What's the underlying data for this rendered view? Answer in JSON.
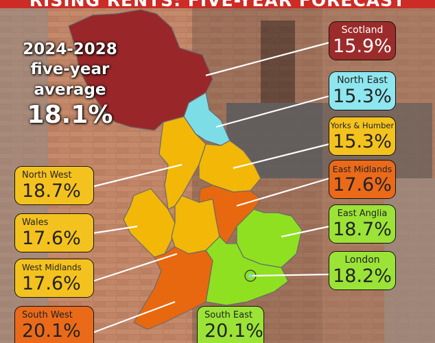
{
  "banner": {
    "title": "RISING RENTS: FIVE-YEAR FORECAST"
  },
  "average": {
    "line1": "2024-2028",
    "line2": "five-year",
    "line3": "average",
    "value": "18.1%"
  },
  "colors": {
    "red": "#99272a",
    "cyan": "#7ddde7",
    "amber": "#f2b707",
    "orange": "#e8680f",
    "green": "#8ee021",
    "label_red": "#9c2b2b",
    "label_cyan": "#8ee6ee",
    "label_amber": "#f4c21f",
    "label_orange": "#ea6a1a",
    "label_green": "#9be337"
  },
  "regions": [
    {
      "name": "Scotland",
      "value": "15.9%",
      "color": "red"
    },
    {
      "name": "North East",
      "value": "15.3%",
      "color": "cyan"
    },
    {
      "name": "Yorks & Humber",
      "value": "15.3%",
      "color": "amber"
    },
    {
      "name": "East Midlands",
      "value": "17.6%",
      "color": "orange"
    },
    {
      "name": "East Anglia",
      "value": "18.7%",
      "color": "green"
    },
    {
      "name": "London",
      "value": "18.2%",
      "color": "green"
    },
    {
      "name": "North West",
      "value": "18.7%",
      "color": "amber"
    },
    {
      "name": "Wales",
      "value": "17.6%",
      "color": "amber"
    },
    {
      "name": "West Midlands",
      "value": "17.6%",
      "color": "amber"
    },
    {
      "name": "South West",
      "value": "20.1%",
      "color": "orange"
    },
    {
      "name": "South East",
      "value": "20.1%",
      "color": "green"
    }
  ]
}
